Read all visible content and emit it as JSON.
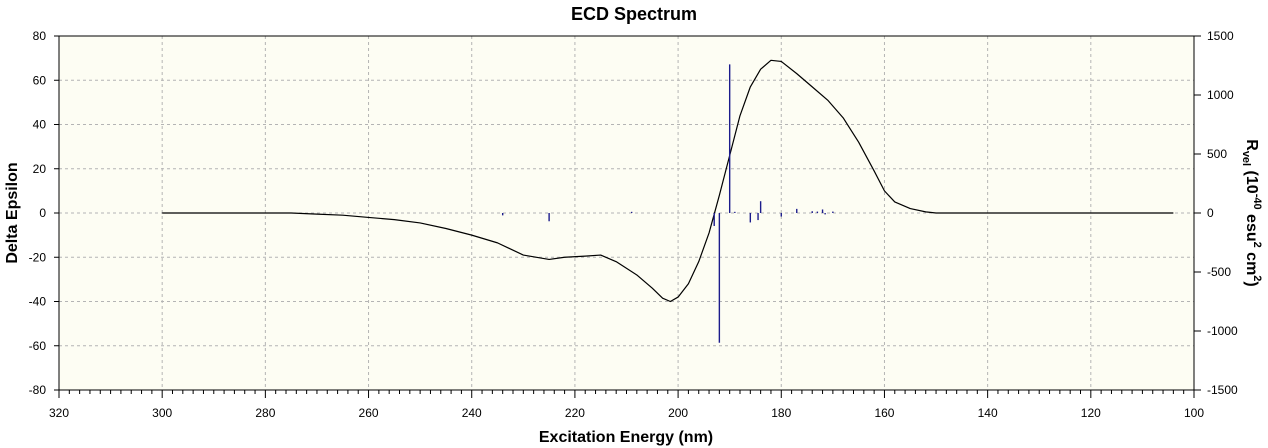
{
  "chart_data": {
    "type": "line",
    "title": "ECD Spectrum",
    "xlabel": "Excitation Energy (nm)",
    "ylabel": "Delta Epsilon",
    "y2label": {
      "base": "R",
      "sub": "vel",
      "pre": " (10",
      "exp1": "-40",
      "mid": " esu",
      "exp2": "2",
      "mid2": " cm",
      "exp3": "2",
      "end": ")"
    },
    "xlim": [
      320,
      100
    ],
    "ylim": [
      -80,
      80
    ],
    "y2lim": [
      -1500,
      1500
    ],
    "x_ticks": [
      "320",
      "300",
      "280",
      "260",
      "240",
      "220",
      "200",
      "180",
      "160",
      "140",
      "120",
      "100"
    ],
    "y_ticks": [
      "80",
      "60",
      "40",
      "20",
      "0",
      "-20",
      "-40",
      "-60",
      "-80"
    ],
    "y2_ticks": [
      "1500",
      "1000",
      "500",
      "0",
      "-500",
      "-1000",
      "-1500"
    ],
    "grid": true,
    "colors": {
      "plot_background": "#fdfdf3",
      "grid": "#b4b4b4",
      "curve": "#000000",
      "sticks": "#1c1c8c"
    },
    "series": [
      {
        "x": [
          300,
          290,
          280,
          275,
          270,
          265,
          260,
          255,
          250,
          245,
          240,
          235,
          230,
          225,
          222,
          218,
          215,
          212,
          208,
          205,
          203,
          201.5,
          200,
          198,
          196,
          194,
          192,
          190,
          188,
          186,
          184,
          182,
          180,
          177,
          174,
          171,
          168,
          165,
          162,
          160,
          158,
          155,
          152,
          150,
          145,
          140,
          130,
          120,
          104
        ],
        "values": [
          0,
          0,
          0,
          0,
          -0.5,
          -1,
          -2,
          -3,
          -4.5,
          -7,
          -10,
          -13.5,
          -19,
          -21,
          -20,
          -19.5,
          -19,
          -22,
          -28,
          -34,
          -38.5,
          -40,
          -38,
          -32,
          -22,
          -9,
          8,
          26,
          44,
          57,
          65,
          69,
          68.5,
          63,
          57,
          51,
          43,
          32,
          19,
          10,
          5,
          2,
          0.5,
          0,
          0,
          0,
          0,
          0,
          0
        ]
      }
    ],
    "sticks": {
      "x": [
        234,
        225,
        209,
        193,
        192,
        190,
        189,
        186,
        184.5,
        184,
        180,
        177,
        174,
        173,
        172,
        171.5,
        170
      ],
      "values": [
        -20,
        -70,
        10,
        -110,
        -1100,
        1260,
        10,
        -80,
        -60,
        100,
        -30,
        35,
        15,
        12,
        30,
        -12,
        12
      ]
    }
  }
}
